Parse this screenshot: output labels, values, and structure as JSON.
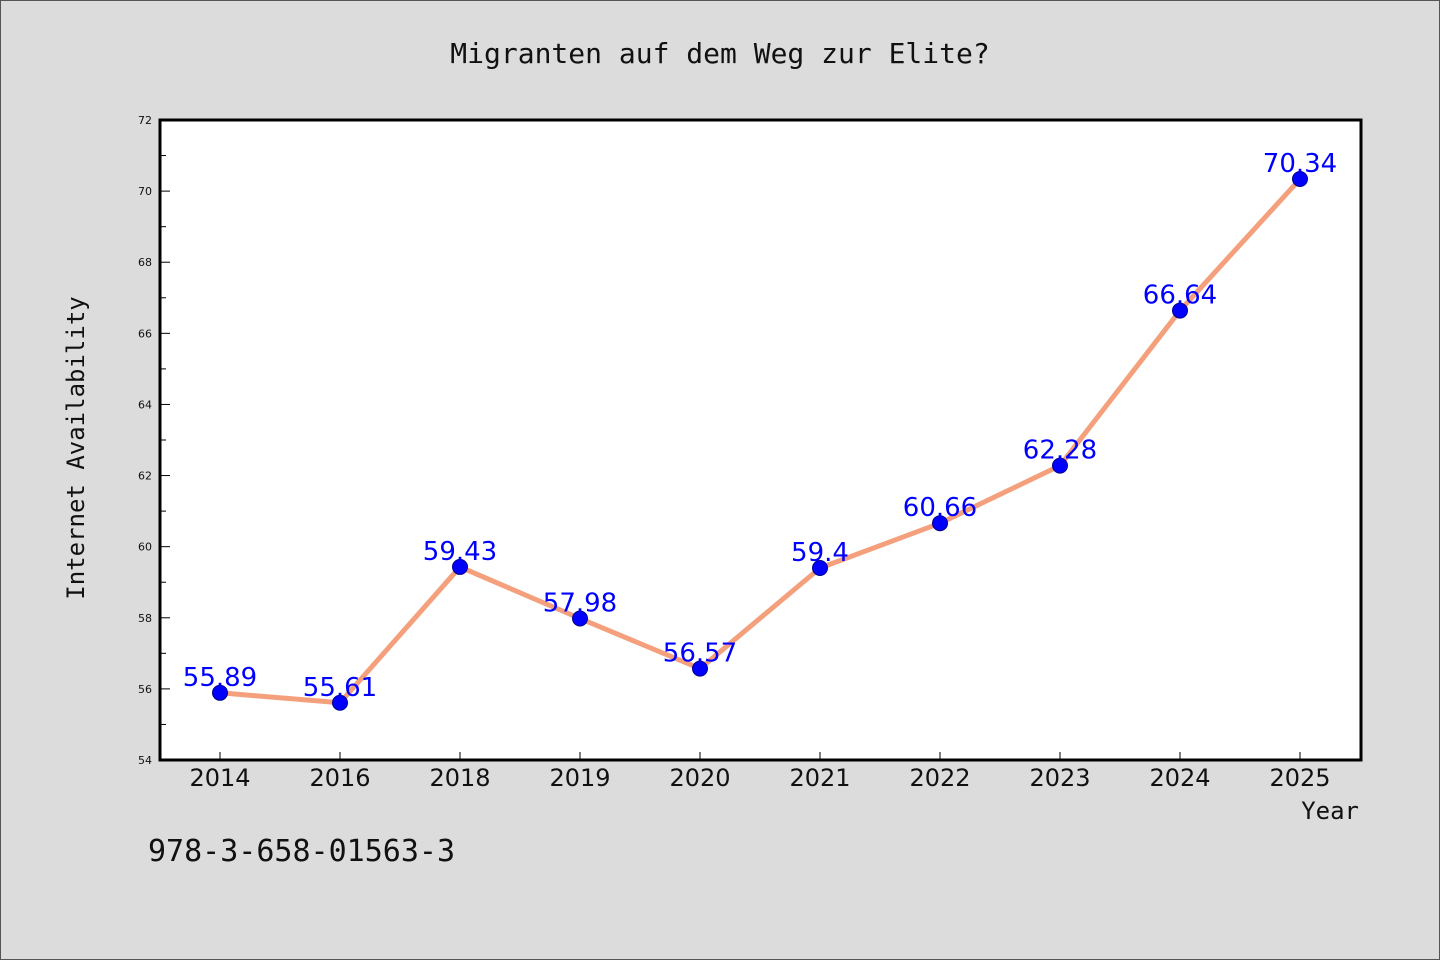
{
  "chart_data": {
    "type": "line",
    "title": "Migranten auf dem Weg zur Elite?",
    "xlabel": "Year",
    "ylabel": "Internet Availability",
    "categories": [
      "2014",
      "2016",
      "2018",
      "2019",
      "2020",
      "2021",
      "2022",
      "2023",
      "2024",
      "2025"
    ],
    "values": [
      55.89,
      55.61,
      59.43,
      57.98,
      56.57,
      59.4,
      60.66,
      62.28,
      66.64,
      70.34
    ],
    "data_labels": [
      "55.89",
      "55.61",
      "59.43",
      "57.98",
      "56.57",
      "59.4",
      "60.66",
      "62.28",
      "66.64",
      "70.34"
    ],
    "ylim": [
      54,
      72
    ],
    "yticks": [
      "54",
      "56",
      "58",
      "60",
      "62",
      "64",
      "66",
      "68",
      "70",
      "72"
    ],
    "grid": false,
    "colors": {
      "line": "#f4a07c",
      "marker": "#0000ff",
      "marker_edge": "#00008b",
      "data_label": "#0000ff",
      "plot_background": "#ffffff",
      "figure_background": "#dcdcdc"
    }
  },
  "footer": {
    "isbn": "978-3-658-01563-3"
  }
}
